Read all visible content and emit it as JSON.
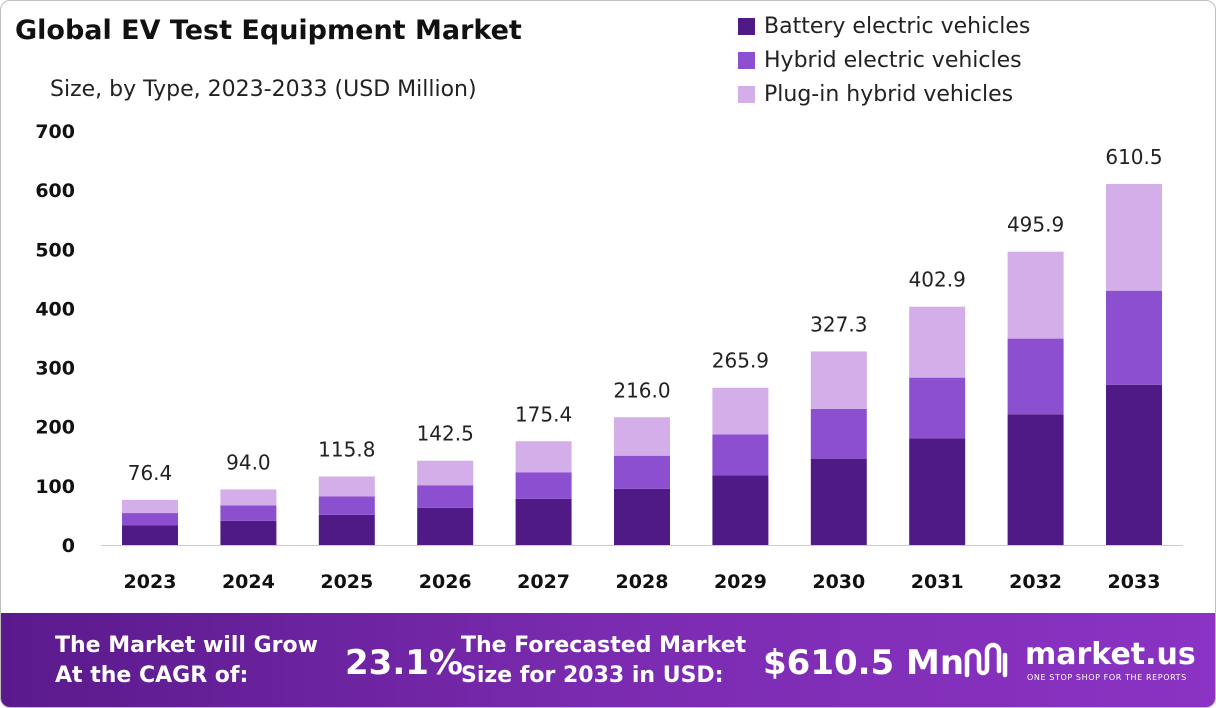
{
  "title": "Global EV Test Equipment Market",
  "subtitle": "Size, by Type, 2023-2033 (USD Million)",
  "colors": {
    "battery": "#4f1a86",
    "hybrid": "#8b4fd0",
    "plugin": "#d4aee9",
    "axis": "#cccccc",
    "footer_start": "#5a1a8c",
    "footer_end": "#8a33c4"
  },
  "chart_data": {
    "type": "bar",
    "stacked": true,
    "title": "Global EV Test Equipment Market",
    "subtitle": "Size, by Type, 2023-2033 (USD Million)",
    "categories": [
      "2023",
      "2024",
      "2025",
      "2026",
      "2027",
      "2028",
      "2029",
      "2030",
      "2031",
      "2032",
      "2033"
    ],
    "series": [
      {
        "name": "Battery electric vehicles",
        "values": [
          33,
          41,
          51,
          63,
          78,
          95,
          118,
          146,
          180,
          221,
          271
        ]
      },
      {
        "name": "Hybrid electric vehicles",
        "values": [
          21,
          26,
          31,
          38,
          45,
          56,
          69,
          84,
          103,
          128,
          159
        ]
      },
      {
        "name": "Plug-in hybrid vehicles",
        "values": [
          22.4,
          27.0,
          33.8,
          41.5,
          52.4,
          65.0,
          78.9,
          97.3,
          119.9,
          146.9,
          180.5
        ]
      }
    ],
    "totals": [
      "76.4",
      "94.0",
      "115.8",
      "142.5",
      "175.4",
      "216.0",
      "265.9",
      "327.3",
      "402.9",
      "495.9",
      "610.5"
    ],
    "yticks": [
      "0",
      "100",
      "200",
      "300",
      "400",
      "500",
      "600",
      "700"
    ],
    "ylim": [
      0,
      700
    ],
    "grid": false,
    "legend_position": "top-right"
  },
  "footer": {
    "cagr_label_line1": "The Market will Grow",
    "cagr_label_line2": "At the CAGR of:",
    "cagr_value": "23.1%",
    "forecast_label_line1": "The Forecasted Market",
    "forecast_label_line2": "Size for 2033 in USD:",
    "forecast_value": "$610.5 Mn",
    "brand_icon": "market-us-logo-icon",
    "brand_name": "market.us",
    "brand_tagline": "ONE STOP SHOP FOR THE REPORTS"
  }
}
